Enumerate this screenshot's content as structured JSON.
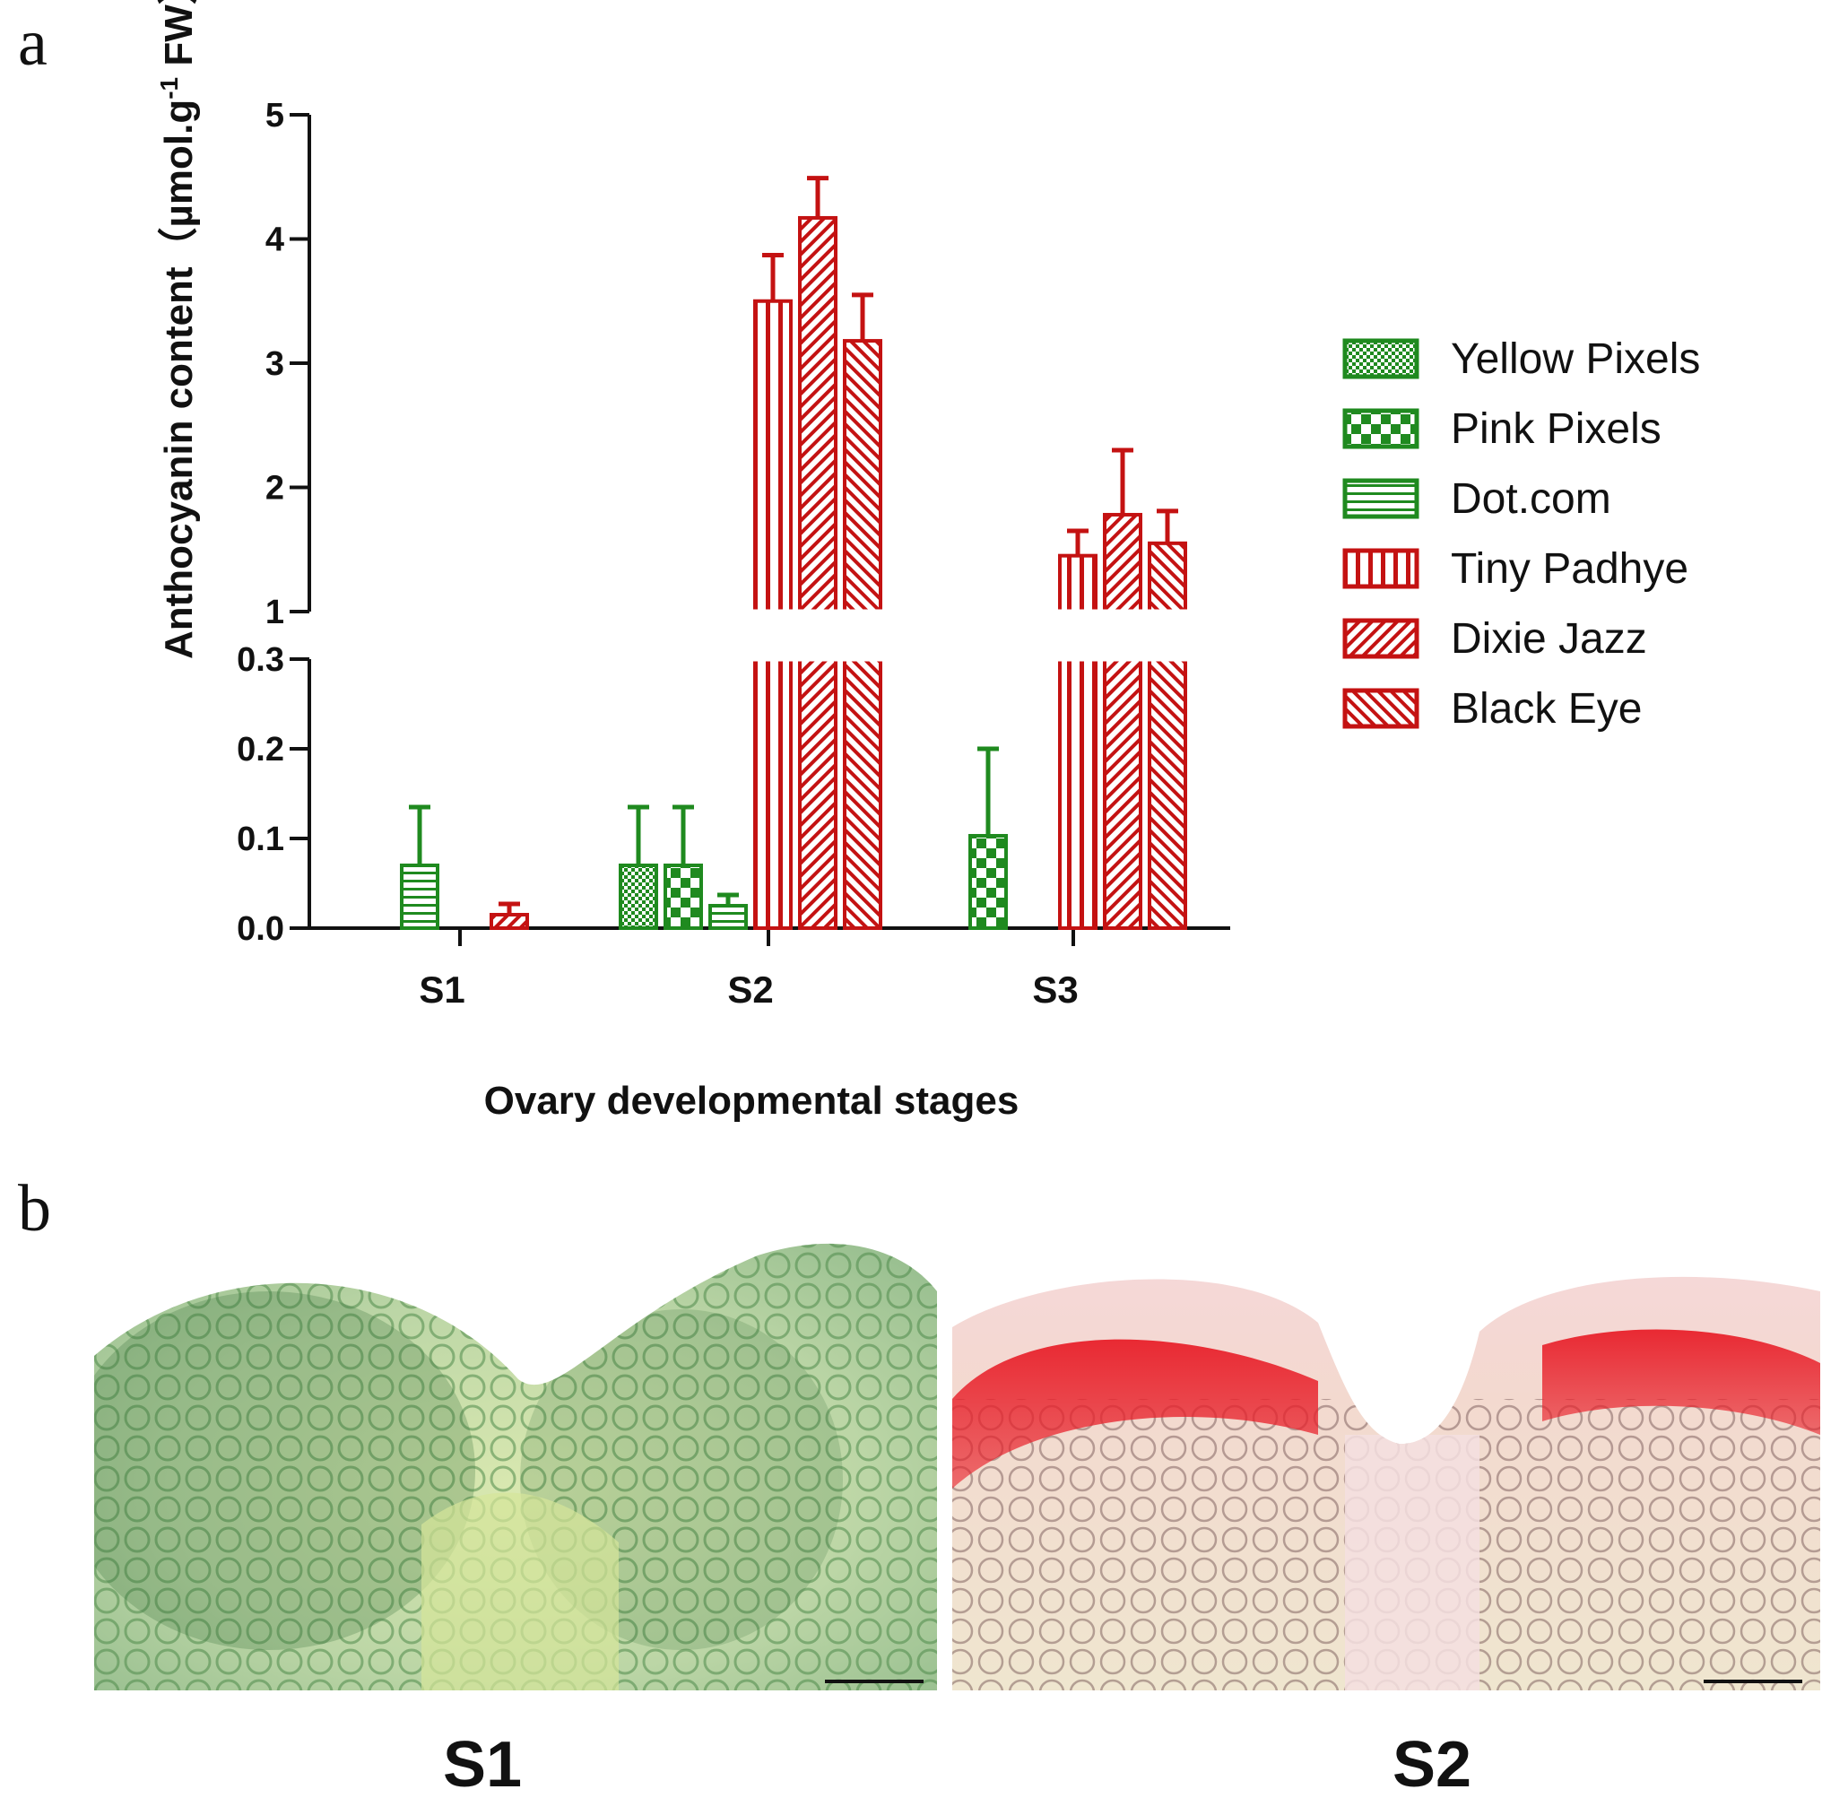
{
  "panels": {
    "a_label": "a",
    "b_label": "b"
  },
  "colors": {
    "green": "#1f8a1f",
    "red": "#c41212",
    "axis": "#111111"
  },
  "chart_data": {
    "type": "bar",
    "title": "",
    "xlabel": "Ovary developmental stages",
    "ylabel_prefix": "Anthocyanin content（µmol.g",
    "ylabel_sup": "-1",
    "ylabel_suffix": " FW）",
    "categories": [
      "S1",
      "S2",
      "S3"
    ],
    "y_axis_break": {
      "lower_range": [
        0,
        0.3
      ],
      "upper_range": [
        1,
        5
      ]
    },
    "lower_ticks": [
      "0.0",
      "0.1",
      "0.2",
      "0.3"
    ],
    "upper_ticks": [
      "1",
      "2",
      "3",
      "4",
      "5"
    ],
    "lower_tick_values": [
      0,
      0.1,
      0.2,
      0.3
    ],
    "upper_tick_values": [
      1,
      2,
      3,
      4,
      5
    ],
    "series": [
      {
        "name": "Yellow Pixels",
        "color": "#1f8a1f",
        "pattern": "checker-fine",
        "values": [
          0,
          0.07,
          0
        ],
        "errors": [
          0,
          0.065,
          0
        ]
      },
      {
        "name": " Pink Pixels",
        "color": "#1f8a1f",
        "pattern": "checker-coarse",
        "values": [
          0,
          0.07,
          0.103
        ],
        "errors": [
          0,
          0.065,
          0.097
        ]
      },
      {
        "name": "Dot.com",
        "color": "#1f8a1f",
        "pattern": "horizontal",
        "values": [
          0.07,
          0.025,
          0
        ],
        "errors": [
          0.065,
          0.012,
          0
        ]
      },
      {
        "name": "Tiny Padhye",
        "color": "#c41212",
        "pattern": "vertical",
        "values": [
          0,
          3.5,
          1.45
        ],
        "errors": [
          0,
          0.37,
          0.2
        ]
      },
      {
        "name": "Dixie Jazz",
        "color": "#c41212",
        "pattern": "diag-up",
        "values": [
          0.015,
          4.17,
          1.78
        ],
        "errors": [
          0.012,
          0.32,
          0.52
        ]
      },
      {
        "name": "Black Eye",
        "color": "#c41212",
        "pattern": "diag-down",
        "values": [
          0,
          3.18,
          1.55
        ],
        "errors": [
          0,
          0.37,
          0.26
        ]
      }
    ]
  },
  "micrographs": [
    {
      "label": "S1"
    },
    {
      "label": "S2"
    }
  ]
}
